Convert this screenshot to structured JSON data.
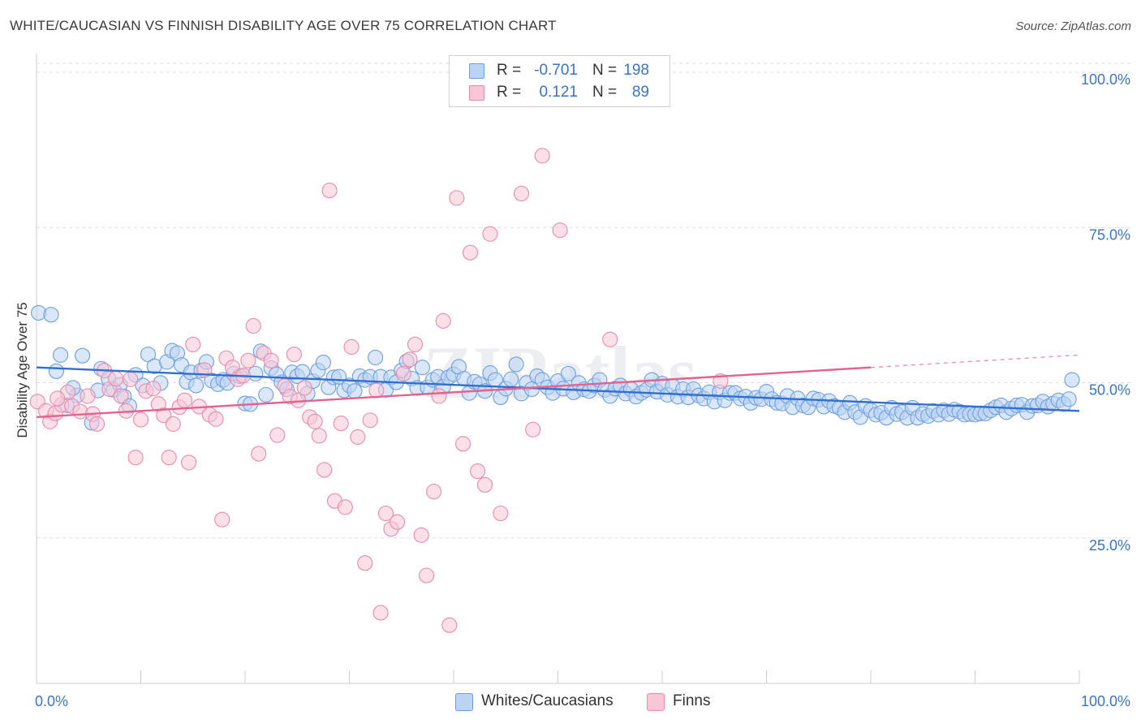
{
  "title": "WHITE/CAUCASIAN VS FINNISH DISABILITY AGE OVER 75 CORRELATION CHART",
  "source": "Source: ZipAtlas.com",
  "watermark": "ZIPatlas",
  "legend": {
    "rows": [
      {
        "r_label": "R =",
        "r_value": "-0.701",
        "n_label": "N =",
        "n_value": "198",
        "fill": "#bcd4f3",
        "stroke": "#6d9ee0"
      },
      {
        "r_label": "R =",
        "r_value": "0.121",
        "n_label": "N =",
        "n_value": "89",
        "fill": "#f9c6d6",
        "stroke": "#e88bab"
      }
    ]
  },
  "bottom_legend": [
    {
      "label": "Whites/Caucasians",
      "fill": "#bcd4f3",
      "stroke": "#6d9ee0"
    },
    {
      "label": "Finns",
      "fill": "#f9c6d6",
      "stroke": "#e88bab"
    }
  ],
  "chart_data": {
    "type": "scatter",
    "title": "WHITE/CAUCASIAN VS FINNISH DISABILITY AGE OVER 75 CORRELATION CHART",
    "xlabel": "",
    "ylabel": "Disability Age Over 75",
    "xlim": [
      0,
      100
    ],
    "ylim": [
      0,
      105
    ],
    "x_tick_labels": [
      "0.0%",
      "100.0%"
    ],
    "y_ticks": [
      25,
      50,
      75,
      100
    ],
    "y_tick_labels": [
      "25.0%",
      "50.0%",
      "75.0%",
      "100.0%"
    ],
    "grid": true,
    "legend_placement": "top-center",
    "series": [
      {
        "name": "Whites/Caucasians",
        "color": "#6d9ee0",
        "fill": "#bcd4f3",
        "line_color": "#2f6fd0",
        "trend": {
          "x": [
            0,
            100
          ],
          "y": [
            53.5,
            46.5
          ]
        },
        "points": [
          [
            0.2,
            62.3
          ],
          [
            1.4,
            62.0
          ],
          [
            1.9,
            52.9
          ],
          [
            2.3,
            55.5
          ],
          [
            2.9,
            47.4
          ],
          [
            3.9,
            49.0
          ],
          [
            3.5,
            50.2
          ],
          [
            4.4,
            55.4
          ],
          [
            5.3,
            44.6
          ],
          [
            5.9,
            49.8
          ],
          [
            6.2,
            53.3
          ],
          [
            6.9,
            51.7
          ],
          [
            7.4,
            49.9
          ],
          [
            8.0,
            50.7
          ],
          [
            8.4,
            48.8
          ],
          [
            8.9,
            47.3
          ],
          [
            9.5,
            52.3
          ],
          [
            10.2,
            50.6
          ],
          [
            10.7,
            55.6
          ],
          [
            11.3,
            53.7
          ],
          [
            11.9,
            51.0
          ],
          [
            12.5,
            54.4
          ],
          [
            13.0,
            56.2
          ],
          [
            13.5,
            55.8
          ],
          [
            13.9,
            53.9
          ],
          [
            14.4,
            51.2
          ],
          [
            14.8,
            52.7
          ],
          [
            15.3,
            50.6
          ],
          [
            15.8,
            53.0
          ],
          [
            16.3,
            54.4
          ],
          [
            16.8,
            51.4
          ],
          [
            17.4,
            50.8
          ],
          [
            17.9,
            51.5
          ],
          [
            18.3,
            51.0
          ],
          [
            18.9,
            52.5
          ],
          [
            19.5,
            52.1
          ],
          [
            20.0,
            47.7
          ],
          [
            20.5,
            47.6
          ],
          [
            21.0,
            52.5
          ],
          [
            21.5,
            56.1
          ],
          [
            22.0,
            49.1
          ],
          [
            22.5,
            53.4
          ],
          [
            23.0,
            52.4
          ],
          [
            23.5,
            51.1
          ],
          [
            24.0,
            50.0
          ],
          [
            24.5,
            52.7
          ],
          [
            25.0,
            52.1
          ],
          [
            25.5,
            52.8
          ],
          [
            26.0,
            49.3
          ],
          [
            26.5,
            51.3
          ],
          [
            27.0,
            53.0
          ],
          [
            27.5,
            54.3
          ],
          [
            28.0,
            50.3
          ],
          [
            28.5,
            51.9
          ],
          [
            29.0,
            52.0
          ],
          [
            29.5,
            49.8
          ],
          [
            30.0,
            50.6
          ],
          [
            30.5,
            49.7
          ],
          [
            31.0,
            52.1
          ],
          [
            31.5,
            51.5
          ],
          [
            32.0,
            52.0
          ],
          [
            32.5,
            55.1
          ],
          [
            33.0,
            52.0
          ],
          [
            33.5,
            49.9
          ],
          [
            34.0,
            51.9
          ],
          [
            34.5,
            51.1
          ],
          [
            35.0,
            53.0
          ],
          [
            35.5,
            54.5
          ],
          [
            36.0,
            51.7
          ],
          [
            36.5,
            50.2
          ],
          [
            37.0,
            53.5
          ],
          [
            37.5,
            50.3
          ],
          [
            38.0,
            51.5
          ],
          [
            38.5,
            52.0
          ],
          [
            39.0,
            50.4
          ],
          [
            39.5,
            51.9
          ],
          [
            40.0,
            52.4
          ],
          [
            40.5,
            53.6
          ],
          [
            41.0,
            51.7
          ],
          [
            41.5,
            49.4
          ],
          [
            42.0,
            51.2
          ],
          [
            42.5,
            50.8
          ],
          [
            43.0,
            49.7
          ],
          [
            43.5,
            52.6
          ],
          [
            44.0,
            51.5
          ],
          [
            44.5,
            48.7
          ],
          [
            45.0,
            50.1
          ],
          [
            45.5,
            51.6
          ],
          [
            46.0,
            54.0
          ],
          [
            46.5,
            49.3
          ],
          [
            47.0,
            51.0
          ],
          [
            47.5,
            50.0
          ],
          [
            48.0,
            52.1
          ],
          [
            48.5,
            51.5
          ],
          [
            49.0,
            50.3
          ],
          [
            49.5,
            49.4
          ],
          [
            50.0,
            51.3
          ],
          [
            50.5,
            50.1
          ],
          [
            51.0,
            52.5
          ],
          [
            51.5,
            49.5
          ],
          [
            52.0,
            51.0
          ],
          [
            52.5,
            50.0
          ],
          [
            53.0,
            49.7
          ],
          [
            53.5,
            50.6
          ],
          [
            54.0,
            51.5
          ],
          [
            54.5,
            49.9
          ],
          [
            55.0,
            48.9
          ],
          [
            55.5,
            50.1
          ],
          [
            56.0,
            50.6
          ],
          [
            56.5,
            49.3
          ],
          [
            57.0,
            50.0
          ],
          [
            57.5,
            48.8
          ],
          [
            58.0,
            49.4
          ],
          [
            58.5,
            49.9
          ],
          [
            59.0,
            51.5
          ],
          [
            59.5,
            49.6
          ],
          [
            60.0,
            50.9
          ],
          [
            60.5,
            49.1
          ],
          [
            61.0,
            50.5
          ],
          [
            61.5,
            48.8
          ],
          [
            62.0,
            50.0
          ],
          [
            62.5,
            48.7
          ],
          [
            63.0,
            50.0
          ],
          [
            63.5,
            49.0
          ],
          [
            64.0,
            48.5
          ],
          [
            64.5,
            49.5
          ],
          [
            65.0,
            48.0
          ],
          [
            65.5,
            49.5
          ],
          [
            66.0,
            48.2
          ],
          [
            66.5,
            49.4
          ],
          [
            67.0,
            49.4
          ],
          [
            67.5,
            48.5
          ],
          [
            68.0,
            48.8
          ],
          [
            68.5,
            47.8
          ],
          [
            69.0,
            48.6
          ],
          [
            69.5,
            48.4
          ],
          [
            70.0,
            49.6
          ],
          [
            70.5,
            48.4
          ],
          [
            71.0,
            47.8
          ],
          [
            71.5,
            47.7
          ],
          [
            72.0,
            48.9
          ],
          [
            72.5,
            47.1
          ],
          [
            73.0,
            48.5
          ],
          [
            73.5,
            47.4
          ],
          [
            74.0,
            47.1
          ],
          [
            74.5,
            48.5
          ],
          [
            75.0,
            48.3
          ],
          [
            75.5,
            47.2
          ],
          [
            76.0,
            48.1
          ],
          [
            76.5,
            47.3
          ],
          [
            77.0,
            47.0
          ],
          [
            77.5,
            46.3
          ],
          [
            78.0,
            47.8
          ],
          [
            78.5,
            46.3
          ],
          [
            79.0,
            45.5
          ],
          [
            79.5,
            47.3
          ],
          [
            80.0,
            46.6
          ],
          [
            80.5,
            45.9
          ],
          [
            81.0,
            46.2
          ],
          [
            81.5,
            45.4
          ],
          [
            82.0,
            47.0
          ],
          [
            82.5,
            46.0
          ],
          [
            83.0,
            46.3
          ],
          [
            83.5,
            45.4
          ],
          [
            84.0,
            47.0
          ],
          [
            84.5,
            45.4
          ],
          [
            85.0,
            46.0
          ],
          [
            85.5,
            45.7
          ],
          [
            86.0,
            46.5
          ],
          [
            86.5,
            45.9
          ],
          [
            87.0,
            46.6
          ],
          [
            87.5,
            46.0
          ],
          [
            88.0,
            46.7
          ],
          [
            88.5,
            46.4
          ],
          [
            89.0,
            45.9
          ],
          [
            89.5,
            46.0
          ],
          [
            90.0,
            45.9
          ],
          [
            90.5,
            46.1
          ],
          [
            91.0,
            46.1
          ],
          [
            91.5,
            46.6
          ],
          [
            92.0,
            47.1
          ],
          [
            92.5,
            47.4
          ],
          [
            93.0,
            46.3
          ],
          [
            93.5,
            46.9
          ],
          [
            94.0,
            47.4
          ],
          [
            94.5,
            47.5
          ],
          [
            95.0,
            46.3
          ],
          [
            95.5,
            47.3
          ],
          [
            96.0,
            47.4
          ],
          [
            96.5,
            48.0
          ],
          [
            97.0,
            47.2
          ],
          [
            97.5,
            47.7
          ],
          [
            98.0,
            48.2
          ],
          [
            98.5,
            47.6
          ],
          [
            99.0,
            48.4
          ],
          [
            99.3,
            51.5
          ]
        ]
      },
      {
        "name": "Finns",
        "color": "#e88bab",
        "fill": "#f9c6d6",
        "line_color": "#e4628e",
        "trend": {
          "x": [
            0,
            80
          ],
          "y": [
            45.5,
            53.5
          ]
        },
        "trend_dashed": {
          "x": [
            80,
            100
          ],
          "y": [
            53.5,
            55.5
          ]
        },
        "points": [
          [
            0.1,
            48.0
          ],
          [
            0.9,
            46.5
          ],
          [
            1.3,
            44.8
          ],
          [
            1.8,
            46.1
          ],
          [
            2.4,
            47.5
          ],
          [
            3.0,
            49.5
          ],
          [
            3.4,
            47.3
          ],
          [
            4.2,
            46.4
          ],
          [
            4.9,
            48.9
          ],
          [
            5.4,
            46.0
          ],
          [
            5.8,
            44.4
          ],
          [
            6.5,
            53.0
          ],
          [
            7.0,
            50.0
          ],
          [
            7.6,
            51.7
          ],
          [
            8.1,
            48.9
          ],
          [
            8.6,
            46.5
          ],
          [
            9.0,
            51.6
          ],
          [
            9.5,
            39.0
          ],
          [
            10.0,
            45.1
          ],
          [
            10.5,
            49.7
          ],
          [
            11.2,
            50.1
          ],
          [
            11.7,
            47.6
          ],
          [
            12.2,
            45.8
          ],
          [
            12.7,
            39.0
          ],
          [
            13.1,
            44.4
          ],
          [
            13.7,
            47.1
          ],
          [
            14.2,
            48.2
          ],
          [
            14.6,
            38.2
          ],
          [
            15.0,
            57.2
          ],
          [
            15.6,
            47.2
          ],
          [
            16.1,
            53.1
          ],
          [
            16.6,
            45.9
          ],
          [
            17.2,
            45.2
          ],
          [
            17.8,
            29.0
          ],
          [
            18.2,
            55.0
          ],
          [
            18.8,
            53.5
          ],
          [
            19.3,
            51.6
          ],
          [
            19.8,
            52.2
          ],
          [
            20.3,
            54.6
          ],
          [
            20.8,
            60.2
          ],
          [
            21.3,
            39.6
          ],
          [
            21.8,
            55.8
          ],
          [
            22.5,
            54.6
          ],
          [
            23.1,
            42.6
          ],
          [
            23.8,
            50.5
          ],
          [
            24.3,
            48.8
          ],
          [
            24.7,
            55.6
          ],
          [
            25.1,
            48.2
          ],
          [
            25.7,
            50.2
          ],
          [
            26.2,
            45.5
          ],
          [
            26.7,
            44.8
          ],
          [
            27.1,
            42.5
          ],
          [
            27.6,
            37.0
          ],
          [
            28.1,
            82.0
          ],
          [
            28.6,
            32.0
          ],
          [
            29.2,
            44.5
          ],
          [
            29.6,
            31.0
          ],
          [
            30.2,
            56.8
          ],
          [
            30.8,
            42.3
          ],
          [
            31.5,
            22.0
          ],
          [
            32.0,
            45.0
          ],
          [
            32.6,
            49.8
          ],
          [
            33.0,
            14.0
          ],
          [
            33.5,
            30.0
          ],
          [
            34.0,
            27.5
          ],
          [
            34.6,
            28.6
          ],
          [
            35.2,
            52.5
          ],
          [
            35.8,
            54.8
          ],
          [
            36.3,
            57.2
          ],
          [
            36.9,
            26.5
          ],
          [
            37.4,
            20.0
          ],
          [
            38.1,
            33.5
          ],
          [
            38.6,
            48.9
          ],
          [
            39.0,
            61.0
          ],
          [
            39.6,
            12.0
          ],
          [
            40.3,
            80.8
          ],
          [
            40.9,
            41.2
          ],
          [
            41.6,
            72.0
          ],
          [
            42.3,
            36.8
          ],
          [
            43.0,
            34.6
          ],
          [
            43.5,
            75.0
          ],
          [
            44.5,
            30.0
          ],
          [
            46.5,
            81.5
          ],
          [
            47.6,
            43.5
          ],
          [
            48.5,
            87.6
          ],
          [
            50.2,
            75.6
          ],
          [
            55.0,
            58.0
          ],
          [
            65.6,
            51.3
          ],
          [
            2.0,
            48.5
          ]
        ]
      }
    ]
  }
}
